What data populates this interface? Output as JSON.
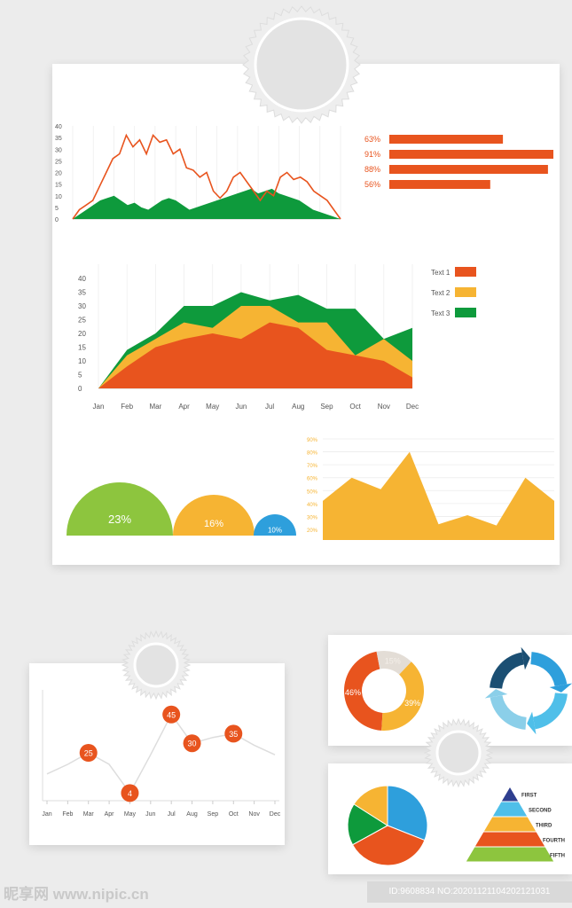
{
  "colors": {
    "orange": "#e8541e",
    "green": "#0e9a3c",
    "yellow": "#f6b433",
    "lime": "#8dc53e",
    "blue": "#2e9fdc",
    "light_blue": "#4fbfe9",
    "navy": "#1b4f73",
    "grey": "#ccc"
  },
  "chart_data": [
    {
      "id": "top-line-area",
      "type": "line",
      "ylim": [
        0,
        40
      ],
      "yticks": [
        0,
        5,
        10,
        15,
        20,
        25,
        30,
        35,
        40
      ],
      "series": [
        {
          "values": [
            0,
            4,
            6,
            8,
            14,
            20,
            26,
            28,
            36,
            31,
            34,
            28,
            36,
            33,
            34,
            28,
            30,
            22,
            21,
            18,
            20,
            12,
            9,
            12,
            18,
            20,
            16,
            12,
            8,
            12,
            10,
            18,
            20,
            17,
            18,
            16,
            12,
            10,
            8,
            4,
            0
          ]
        },
        {
          "values": [
            0,
            2,
            4,
            6,
            8,
            9,
            10,
            8,
            6,
            7,
            5,
            4,
            6,
            8,
            9,
            8,
            6,
            4,
            5,
            6,
            7,
            8,
            9,
            10,
            11,
            12,
            13,
            11,
            12,
            13,
            11,
            10,
            9,
            8,
            6,
            4,
            3,
            2,
            1,
            0
          ]
        }
      ]
    },
    {
      "id": "top-bar",
      "type": "bar",
      "categories": [
        "63%",
        "91%",
        "88%",
        "56%"
      ],
      "values": [
        63,
        91,
        88,
        56
      ]
    },
    {
      "id": "monthly-stacked-area",
      "type": "area",
      "categories": [
        "Jan",
        "Feb",
        "Mar",
        "Apr",
        "May",
        "Jun",
        "Jul",
        "Aug",
        "Sep",
        "Oct",
        "Nov",
        "Dec"
      ],
      "ylim": [
        0,
        40
      ],
      "yticks": [
        0,
        5,
        10,
        15,
        20,
        25,
        30,
        35,
        40
      ],
      "legend": [
        "Text 1",
        "Text 2",
        "Text 3"
      ],
      "series": [
        {
          "name": "Text 3",
          "values": [
            0,
            14,
            20,
            30,
            30,
            35,
            32,
            34,
            29,
            29,
            18,
            22
          ]
        },
        {
          "name": "Text 2",
          "values": [
            0,
            12,
            18,
            24,
            22,
            30,
            30,
            24,
            24,
            12,
            18,
            10
          ]
        },
        {
          "name": "Text 1",
          "values": [
            0,
            8,
            15,
            18,
            20,
            18,
            24,
            22,
            14,
            12,
            10,
            4
          ]
        }
      ]
    },
    {
      "id": "semicircles",
      "type": "pie",
      "labels": [
        "23%",
        "16%",
        "10%"
      ],
      "values": [
        23,
        16,
        10
      ]
    },
    {
      "id": "percent-area",
      "type": "area",
      "ylim": [
        20,
        90
      ],
      "yticks": [
        "20%",
        "30%",
        "40%",
        "50%",
        "60%",
        "70%",
        "80%",
        "90%"
      ],
      "values": [
        42,
        60,
        51,
        80,
        24,
        31,
        23,
        60,
        42
      ]
    },
    {
      "id": "bottom-line",
      "type": "line",
      "categories": [
        "Jan",
        "Feb",
        "Mar",
        "Apr",
        "May",
        "Jun",
        "Jul",
        "Aug",
        "Sep",
        "Oct",
        "Nov",
        "Dec"
      ],
      "values": [
        14,
        19,
        25,
        19,
        4,
        24,
        45,
        30,
        33,
        35,
        29,
        24
      ],
      "labels": [
        null,
        null,
        "25",
        null,
        "4",
        null,
        "45",
        "30",
        null,
        "35",
        null,
        null
      ]
    },
    {
      "id": "donut",
      "type": "pie",
      "labels": [
        "46%",
        "15%",
        "39%"
      ],
      "values": [
        46,
        15,
        39
      ]
    },
    {
      "id": "pie",
      "type": "pie",
      "values": [
        31,
        36,
        17,
        16
      ]
    },
    {
      "id": "pyramid",
      "type": "bar",
      "categories": [
        "FIRST",
        "SECOND",
        "THIRD",
        "FOURTH",
        "FIFTH"
      ]
    }
  ],
  "watermark": {
    "logo": "昵享网 www.nipic.cn",
    "id": "ID:9608834 NO:20201121104202121031"
  }
}
